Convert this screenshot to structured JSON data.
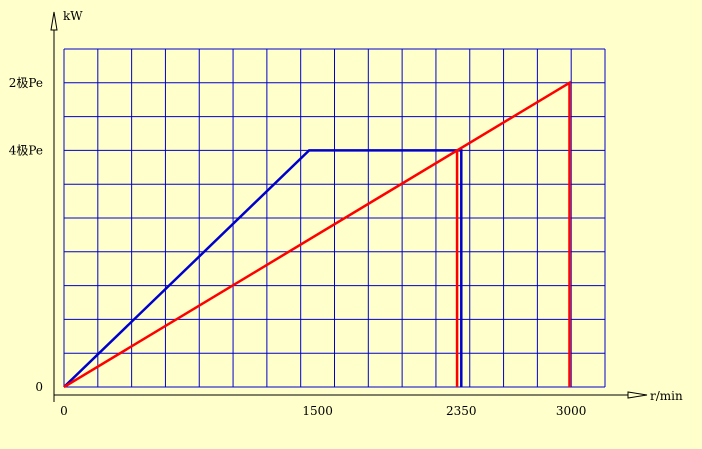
{
  "chart_data": {
    "type": "line",
    "x_unit": "r/min",
    "y_unit": "kW",
    "x_ticks": [
      {
        "value": 0,
        "label": "0"
      },
      {
        "value": 1500,
        "label": "1500"
      },
      {
        "value": 2350,
        "label": "2350"
      },
      {
        "value": 3000,
        "label": "3000"
      }
    ],
    "y_ticks": [
      {
        "value": 0,
        "label": "0"
      },
      {
        "value": 1.4,
        "label": "4极Pe"
      },
      {
        "value": 1.8,
        "label": "2极Pe"
      }
    ],
    "xlim": [
      0,
      3200
    ],
    "ylim": [
      0,
      2.0
    ],
    "grid": true,
    "grid_x_step": 200,
    "grid_y_step": 0.2,
    "series": [
      {
        "color": "#0000cc",
        "points": [
          [
            0,
            0
          ],
          [
            1450,
            1.4
          ],
          [
            2350,
            1.4
          ],
          [
            2350,
            0
          ]
        ]
      },
      {
        "color": "#ff0000",
        "points": [
          [
            0,
            0
          ],
          [
            2990,
            1.8
          ],
          [
            2990,
            0
          ]
        ]
      },
      {
        "color": "#ff0000",
        "points": [
          [
            2325,
            1.4
          ],
          [
            2325,
            0
          ]
        ]
      }
    ],
    "colors": {
      "grid": "#0000cc",
      "axis": "#000000",
      "background": "#ffffcc"
    }
  }
}
